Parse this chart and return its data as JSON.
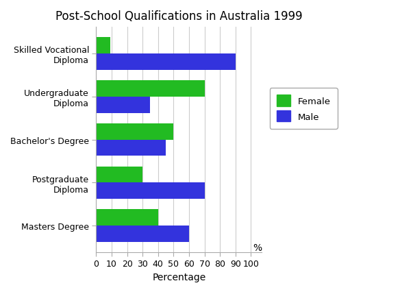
{
  "title": "Post-School Qualifications in Australia 1999",
  "categories": [
    "Skilled Vocational\nDiploma",
    "Undergraduate\nDiploma",
    "Bachelor's Degree",
    "Postgraduate\nDiploma",
    "Masters Degree"
  ],
  "female_values": [
    9,
    70,
    50,
    30,
    40
  ],
  "male_values": [
    90,
    35,
    45,
    70,
    60
  ],
  "female_color": "#22bb22",
  "male_color": "#3333dd",
  "xlabel": "Percentage",
  "xlim": [
    0,
    107
  ],
  "xticks": [
    0,
    10,
    20,
    30,
    40,
    50,
    60,
    70,
    80,
    90,
    100
  ],
  "xtick_labels": [
    "0",
    "10",
    "20",
    "30",
    "40",
    "50",
    "60",
    "70",
    "80",
    "90",
    "100"
  ],
  "bar_height": 0.38,
  "background_color": "#ffffff",
  "title_fontsize": 12,
  "legend_labels": [
    "Female",
    "Male"
  ],
  "percent_label": "%"
}
